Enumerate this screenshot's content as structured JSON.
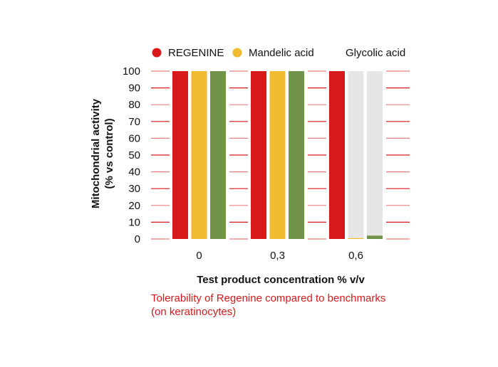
{
  "chart_data": {
    "type": "bar",
    "title": "",
    "xlabel": "Test product concentration % v/v",
    "ylabel_lines": [
      "Mitochondrial activity",
      "(% vs control)"
    ],
    "ylim": [
      0,
      100
    ],
    "yticks": [
      0,
      10,
      20,
      30,
      40,
      50,
      60,
      70,
      80,
      90,
      100
    ],
    "categories": [
      "0",
      "0,3",
      "0,6"
    ],
    "series": [
      {
        "name": "REGENINE",
        "color": "#d7191c",
        "values": [
          100,
          100,
          100
        ],
        "legend_marker": true
      },
      {
        "name": "Mandelic acid",
        "color": "#f0bb2f",
        "values": [
          100,
          100,
          0.5
        ],
        "legend_marker": true
      },
      {
        "name": "Glycolic acid",
        "color": "#72944a",
        "values": [
          100,
          100,
          2
        ],
        "legend_marker": false
      }
    ],
    "background_bar_color": "#e6e6e6",
    "grid": true,
    "grid_color": "#d7191c",
    "legend_placement": "top",
    "caption_lines": [
      "Tolerability of Regenine compared to benchmarks",
      "(on keratinocytes)"
    ],
    "caption_color": "#d7191c"
  }
}
